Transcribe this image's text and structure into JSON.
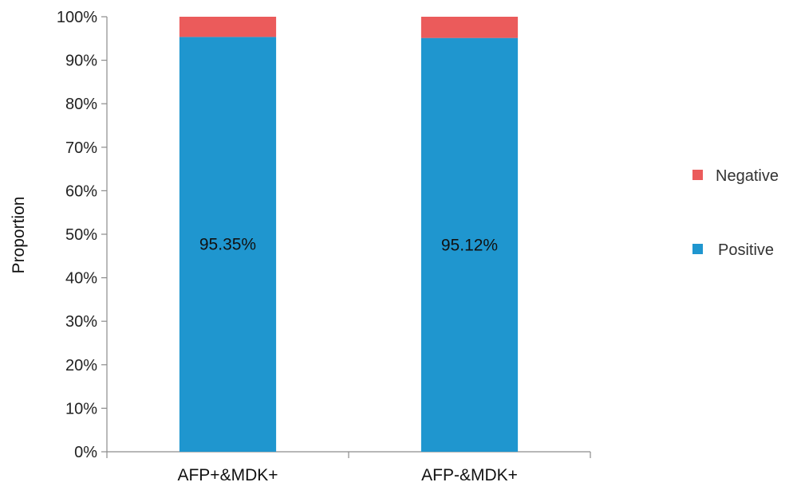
{
  "chart_data": {
    "type": "bar",
    "stacked": true,
    "categories": [
      "AFP+&MDK+",
      "AFP-&MDK+"
    ],
    "series": [
      {
        "name": "Positive",
        "values": [
          95.35,
          95.12
        ],
        "color": "#1f96cf",
        "labels": [
          "95.35%",
          "95.12%"
        ]
      },
      {
        "name": "Negative",
        "values": [
          4.65,
          4.88
        ],
        "color": "#eb5b5b"
      }
    ],
    "ylabel": "Proportion",
    "ylim": [
      0,
      100
    ],
    "yticks": [
      "0%",
      "10%",
      "20%",
      "30%",
      "40%",
      "50%",
      "60%",
      "70%",
      "80%",
      "90%",
      "100%"
    ],
    "grid": false,
    "legend": {
      "position": "right",
      "entries": [
        "Negative",
        "Positive"
      ]
    }
  }
}
